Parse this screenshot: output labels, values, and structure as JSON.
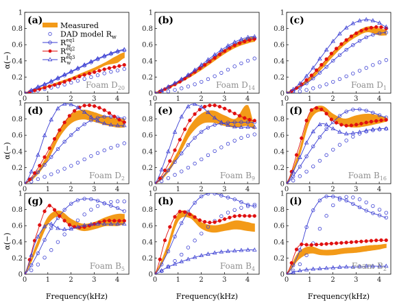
{
  "figure": {
    "ylabel": "α(−)",
    "xlabel": "Frequency(kHz)",
    "x_ticks": [
      "0",
      "1",
      "2",
      "3",
      "4"
    ],
    "y_ticks": [
      "0",
      "0.2",
      "0.4",
      "0.6",
      "0.8",
      "1"
    ]
  },
  "legend": {
    "entries": [
      {
        "label": "Measured",
        "sub": "",
        "sup": ""
      },
      {
        "label": "DAD model R",
        "sub": "w",
        "sup": ""
      },
      {
        "label": "R",
        "sub": "w",
        "sup": "eq1"
      },
      {
        "label": "R",
        "sub": "w",
        "sup": "eq2"
      },
      {
        "label": "R",
        "sub": "w",
        "sup": "eq3"
      }
    ]
  },
  "colors": {
    "measured": "#f39a18",
    "model": "#3a3ed3",
    "eq2": "#e01010",
    "axis": "#000000"
  },
  "chart_data": [
    {
      "type": "line",
      "panel": "(a)",
      "foam": "Foam D",
      "foam_sub": "20",
      "xlim": [
        0,
        4.5
      ],
      "ylim": [
        0,
        1
      ],
      "x": [
        0,
        0.5,
        1,
        1.5,
        2,
        2.5,
        3,
        3.5,
        4,
        4.3
      ],
      "series": [
        {
          "name": "Measured",
          "kind": "band",
          "lower": [
            0.01,
            0.04,
            0.08,
            0.12,
            0.17,
            0.22,
            0.28,
            0.35,
            0.38,
            0.44
          ],
          "upper": [
            0.01,
            0.05,
            0.09,
            0.14,
            0.19,
            0.25,
            0.31,
            0.38,
            0.46,
            0.5
          ]
        },
        {
          "name": "DAD model Rw",
          "kind": "circle",
          "values": [
            0.0,
            0.03,
            0.06,
            0.09,
            0.13,
            0.17,
            0.21,
            0.25,
            0.28,
            0.3
          ]
        },
        {
          "name": "Rw eq1",
          "kind": "circle-line",
          "values": [
            0.0,
            0.06,
            0.12,
            0.19,
            0.26,
            0.33,
            0.4,
            0.46,
            0.51,
            0.53
          ]
        },
        {
          "name": "Rw eq2",
          "kind": "dot-line",
          "values": [
            0.0,
            0.04,
            0.08,
            0.12,
            0.17,
            0.22,
            0.26,
            0.3,
            0.33,
            0.35
          ]
        },
        {
          "name": "Rw eq3",
          "kind": "triangle-line",
          "values": [
            0.0,
            0.07,
            0.13,
            0.2,
            0.27,
            0.34,
            0.41,
            0.47,
            0.52,
            0.54
          ]
        }
      ]
    },
    {
      "type": "line",
      "panel": "(b)",
      "foam": "Foam D",
      "foam_sub": "14",
      "xlim": [
        0,
        4.5
      ],
      "ylim": [
        0,
        1
      ],
      "x": [
        0,
        0.5,
        1,
        1.5,
        2,
        2.5,
        3,
        3.5,
        4,
        4.3
      ],
      "series": [
        {
          "name": "Measured",
          "kind": "band",
          "lower": [
            0.0,
            0.05,
            0.12,
            0.2,
            0.29,
            0.39,
            0.49,
            0.57,
            0.62,
            0.64
          ],
          "upper": [
            0.01,
            0.07,
            0.14,
            0.23,
            0.33,
            0.43,
            0.53,
            0.61,
            0.68,
            0.7
          ]
        },
        {
          "name": "DAD model Rw",
          "kind": "circle",
          "values": [
            0.0,
            0.02,
            0.05,
            0.09,
            0.14,
            0.2,
            0.27,
            0.34,
            0.4,
            0.43
          ]
        },
        {
          "name": "Rw eq1",
          "kind": "circle-line",
          "values": [
            0.0,
            0.06,
            0.14,
            0.23,
            0.33,
            0.44,
            0.54,
            0.62,
            0.67,
            0.68
          ]
        },
        {
          "name": "Rw eq2",
          "kind": "dot-line",
          "values": [
            0.0,
            0.06,
            0.13,
            0.22,
            0.32,
            0.42,
            0.52,
            0.6,
            0.65,
            0.67
          ]
        },
        {
          "name": "Rw eq3",
          "kind": "triangle-line",
          "values": [
            0.0,
            0.07,
            0.15,
            0.24,
            0.35,
            0.46,
            0.56,
            0.64,
            0.69,
            0.7
          ]
        }
      ]
    },
    {
      "type": "line",
      "panel": "(c)",
      "foam": "Foam D",
      "foam_sub": "1",
      "xlim": [
        0,
        4.5
      ],
      "ylim": [
        0,
        1
      ],
      "x": [
        0,
        0.5,
        1,
        1.5,
        2,
        2.5,
        3,
        3.5,
        4,
        4.3
      ],
      "series": [
        {
          "name": "Measured",
          "kind": "band",
          "lower": [
            0.0,
            0.06,
            0.16,
            0.3,
            0.46,
            0.6,
            0.7,
            0.76,
            0.72,
            0.72
          ],
          "upper": [
            0.01,
            0.08,
            0.19,
            0.34,
            0.5,
            0.64,
            0.75,
            0.82,
            0.8,
            0.78
          ]
        },
        {
          "name": "DAD model Rw",
          "kind": "circle",
          "values": [
            0.0,
            0.02,
            0.05,
            0.09,
            0.14,
            0.2,
            0.26,
            0.32,
            0.38,
            0.41
          ]
        },
        {
          "name": "Rw eq1",
          "kind": "circle-line",
          "values": [
            0.0,
            0.06,
            0.15,
            0.27,
            0.4,
            0.52,
            0.62,
            0.7,
            0.74,
            0.75
          ]
        },
        {
          "name": "Rw eq2",
          "kind": "dot-line",
          "values": [
            0.0,
            0.08,
            0.2,
            0.35,
            0.51,
            0.64,
            0.74,
            0.8,
            0.82,
            0.8
          ]
        },
        {
          "name": "Rw eq3",
          "kind": "triangle-line",
          "values": [
            0.0,
            0.1,
            0.26,
            0.45,
            0.64,
            0.79,
            0.88,
            0.91,
            0.87,
            0.82
          ]
        }
      ]
    },
    {
      "type": "line",
      "panel": "(d)",
      "foam": "Foam D",
      "foam_sub": "2",
      "xlim": [
        0,
        4.5
      ],
      "ylim": [
        0,
        1
      ],
      "x": [
        0,
        0.5,
        1,
        1.5,
        2,
        2.5,
        3,
        3.5,
        4,
        4.3
      ],
      "series": [
        {
          "name": "Measured",
          "kind": "band",
          "lower": [
            0.0,
            0.1,
            0.3,
            0.58,
            0.75,
            0.8,
            0.77,
            0.73,
            0.7,
            0.7
          ],
          "upper": [
            0.01,
            0.13,
            0.36,
            0.66,
            0.85,
            0.91,
            0.88,
            0.83,
            0.8,
            0.8
          ]
        },
        {
          "name": "DAD model Rw",
          "kind": "circle",
          "values": [
            0.0,
            0.05,
            0.1,
            0.16,
            0.22,
            0.29,
            0.36,
            0.42,
            0.47,
            0.5
          ]
        },
        {
          "name": "Rw eq1",
          "kind": "circle-line",
          "values": [
            0.0,
            0.12,
            0.28,
            0.45,
            0.6,
            0.72,
            0.8,
            0.83,
            0.82,
            0.81
          ]
        },
        {
          "name": "Rw eq2",
          "kind": "dot-line",
          "values": [
            0.0,
            0.16,
            0.4,
            0.66,
            0.86,
            0.96,
            0.96,
            0.9,
            0.81,
            0.76
          ]
        },
        {
          "name": "Rw eq3",
          "kind": "triangle-line",
          "values": [
            0.0,
            0.3,
            0.7,
            0.95,
            0.98,
            0.9,
            0.8,
            0.74,
            0.72,
            0.72
          ]
        }
      ]
    },
    {
      "type": "line",
      "panel": "(e)",
      "foam": "Foam B",
      "foam_sub": "9",
      "xlim": [
        0,
        4.5
      ],
      "ylim": [
        0,
        1
      ],
      "x": [
        0,
        0.5,
        1,
        1.5,
        2,
        2.5,
        3,
        3.5,
        4,
        4.3
      ],
      "series": [
        {
          "name": "Measured",
          "kind": "band",
          "lower": [
            0.0,
            0.12,
            0.34,
            0.6,
            0.74,
            0.76,
            0.72,
            0.7,
            0.72,
            0.68
          ],
          "upper": [
            0.01,
            0.15,
            0.4,
            0.7,
            0.86,
            0.9,
            0.84,
            0.8,
            0.97,
            0.7
          ]
        },
        {
          "name": "DAD model Rw",
          "kind": "circle",
          "values": [
            0.0,
            0.06,
            0.13,
            0.21,
            0.3,
            0.39,
            0.47,
            0.54,
            0.59,
            0.61
          ]
        },
        {
          "name": "Rw eq1",
          "kind": "circle-line",
          "values": [
            0.0,
            0.14,
            0.32,
            0.5,
            0.64,
            0.72,
            0.75,
            0.76,
            0.76,
            0.76
          ]
        },
        {
          "name": "Rw eq2",
          "kind": "dot-line",
          "values": [
            0.0,
            0.2,
            0.5,
            0.78,
            0.93,
            0.97,
            0.93,
            0.86,
            0.8,
            0.78
          ]
        },
        {
          "name": "Rw eq3",
          "kind": "triangle-line",
          "values": [
            0.0,
            0.34,
            0.74,
            0.97,
            0.95,
            0.83,
            0.74,
            0.7,
            0.7,
            0.7
          ]
        }
      ]
    },
    {
      "type": "line",
      "panel": "(f)",
      "foam": "Foam B",
      "foam_sub": "16",
      "xlim": [
        0,
        4.5
      ],
      "ylim": [
        0,
        1
      ],
      "x": [
        0,
        0.5,
        1,
        1.5,
        2,
        2.5,
        3,
        3.5,
        4,
        4.3
      ],
      "series": [
        {
          "name": "Measured",
          "kind": "band",
          "lower": [
            0.0,
            0.3,
            0.78,
            0.9,
            0.8,
            0.72,
            0.7,
            0.72,
            0.75,
            0.77
          ],
          "upper": [
            0.01,
            0.36,
            0.86,
            0.96,
            0.86,
            0.8,
            0.84,
            0.86,
            0.84,
            0.82
          ]
        },
        {
          "name": "DAD model Rw",
          "kind": "circle",
          "values": [
            0.0,
            0.08,
            0.18,
            0.3,
            0.42,
            0.52,
            0.6,
            0.65,
            0.67,
            0.68
          ]
        },
        {
          "name": "Rw eq1",
          "kind": "circle-line",
          "values": [
            0.0,
            0.18,
            0.4,
            0.6,
            0.76,
            0.88,
            0.92,
            0.9,
            0.85,
            0.82
          ]
        },
        {
          "name": "Rw eq2",
          "kind": "dot-line",
          "values": [
            0.0,
            0.42,
            0.88,
            0.92,
            0.78,
            0.72,
            0.73,
            0.76,
            0.78,
            0.79
          ]
        },
        {
          "name": "Rw eq3",
          "kind": "triangle-line",
          "values": [
            0.0,
            0.28,
            0.58,
            0.74,
            0.68,
            0.62,
            0.63,
            0.66,
            0.68,
            0.68
          ]
        }
      ]
    },
    {
      "type": "line",
      "panel": "(g)",
      "foam": "Foam B",
      "foam_sub": "5",
      "xlim": [
        0,
        4.5
      ],
      "ylim": [
        0,
        1
      ],
      "x": [
        0,
        0.5,
        1,
        1.5,
        2,
        2.5,
        3,
        3.5,
        4,
        4.3
      ],
      "series": [
        {
          "name": "Measured",
          "kind": "band",
          "lower": [
            0.0,
            0.3,
            0.62,
            0.72,
            0.6,
            0.54,
            0.56,
            0.6,
            0.6,
            0.62
          ],
          "upper": [
            0.01,
            0.36,
            0.7,
            0.78,
            0.68,
            0.62,
            0.64,
            0.7,
            0.74,
            0.74
          ]
        },
        {
          "name": "DAD model Rw",
          "kind": "circle",
          "values": [
            0.0,
            0.1,
            0.25,
            0.42,
            0.58,
            0.72,
            0.82,
            0.88,
            0.9,
            0.9
          ]
        },
        {
          "name": "Rw eq1",
          "kind": "circle-line",
          "values": [
            0.0,
            0.22,
            0.5,
            0.72,
            0.87,
            0.93,
            0.92,
            0.87,
            0.82,
            0.78
          ]
        },
        {
          "name": "Rw eq2",
          "kind": "dot-line",
          "values": [
            0.0,
            0.48,
            0.84,
            0.72,
            0.6,
            0.58,
            0.62,
            0.66,
            0.66,
            0.66
          ]
        },
        {
          "name": "Rw eq3",
          "kind": "triangle-line",
          "values": [
            0.0,
            0.42,
            0.62,
            0.56,
            0.56,
            0.6,
            0.62,
            0.62,
            0.62,
            0.62
          ]
        }
      ]
    },
    {
      "type": "line",
      "panel": "(h)",
      "foam": "Foam B",
      "foam_sub": "4",
      "xlim": [
        0,
        4.5
      ],
      "ylim": [
        0,
        1
      ],
      "x": [
        0,
        0.5,
        1,
        1.5,
        2,
        2.5,
        3,
        3.5,
        4,
        4.3
      ],
      "series": [
        {
          "name": "Measured",
          "kind": "band",
          "lower": [
            0.0,
            0.26,
            0.66,
            0.7,
            0.57,
            0.52,
            0.54,
            0.56,
            0.54,
            0.53
          ],
          "upper": [
            0.01,
            0.32,
            0.74,
            0.76,
            0.64,
            0.6,
            0.62,
            0.66,
            0.64,
            0.62
          ]
        },
        {
          "name": "DAD model Rw",
          "kind": "circle",
          "values": [
            0.0,
            0.08,
            0.2,
            0.35,
            0.5,
            0.64,
            0.74,
            0.8,
            0.84,
            0.86
          ]
        },
        {
          "name": "Rw eq1",
          "kind": "circle-line",
          "values": [
            0.0,
            0.24,
            0.55,
            0.8,
            0.96,
            1.0,
            0.96,
            0.92,
            0.86,
            0.84
          ]
        },
        {
          "name": "Rw eq2",
          "kind": "dot-line",
          "values": [
            0.0,
            0.48,
            0.76,
            0.74,
            0.66,
            0.64,
            0.68,
            0.72,
            0.72,
            0.72
          ]
        },
        {
          "name": "Rw eq3",
          "kind": "triangle-line",
          "values": [
            0.0,
            0.08,
            0.14,
            0.19,
            0.23,
            0.26,
            0.28,
            0.29,
            0.3,
            0.3
          ]
        }
      ]
    },
    {
      "type": "line",
      "panel": "(i)",
      "foam": "Foam B",
      "foam_sub": "2",
      "xlim": [
        0,
        4.5
      ],
      "ylim": [
        0,
        1
      ],
      "x": [
        0,
        0.5,
        1,
        1.5,
        2,
        2.5,
        3,
        3.5,
        4,
        4.3
      ],
      "series": [
        {
          "name": "Measured",
          "kind": "band",
          "lower": [
            0.0,
            0.18,
            0.26,
            0.24,
            0.24,
            0.26,
            0.27,
            0.29,
            0.31,
            0.33
          ],
          "upper": [
            0.01,
            0.26,
            0.34,
            0.3,
            0.3,
            0.32,
            0.33,
            0.35,
            0.36,
            0.37
          ]
        },
        {
          "name": "DAD model Rw",
          "kind": "circle",
          "values": [
            0.0,
            0.1,
            0.3,
            0.6,
            0.85,
            0.95,
            0.94,
            0.88,
            0.8,
            0.76
          ]
        },
        {
          "name": "Rw eq1",
          "kind": "circle-line",
          "values": [
            0.0,
            0.24,
            0.7,
            0.93,
            0.96,
            0.92,
            0.85,
            0.78,
            0.73,
            0.7
          ]
        },
        {
          "name": "Rw eq2",
          "kind": "dot-line",
          "values": [
            0.0,
            0.34,
            0.36,
            0.37,
            0.38,
            0.39,
            0.4,
            0.41,
            0.42,
            0.42
          ]
        },
        {
          "name": "Rw eq3",
          "kind": "triangle-line",
          "values": [
            0.0,
            0.04,
            0.06,
            0.07,
            0.08,
            0.09,
            0.09,
            0.1,
            0.1,
            0.1
          ]
        }
      ]
    }
  ]
}
